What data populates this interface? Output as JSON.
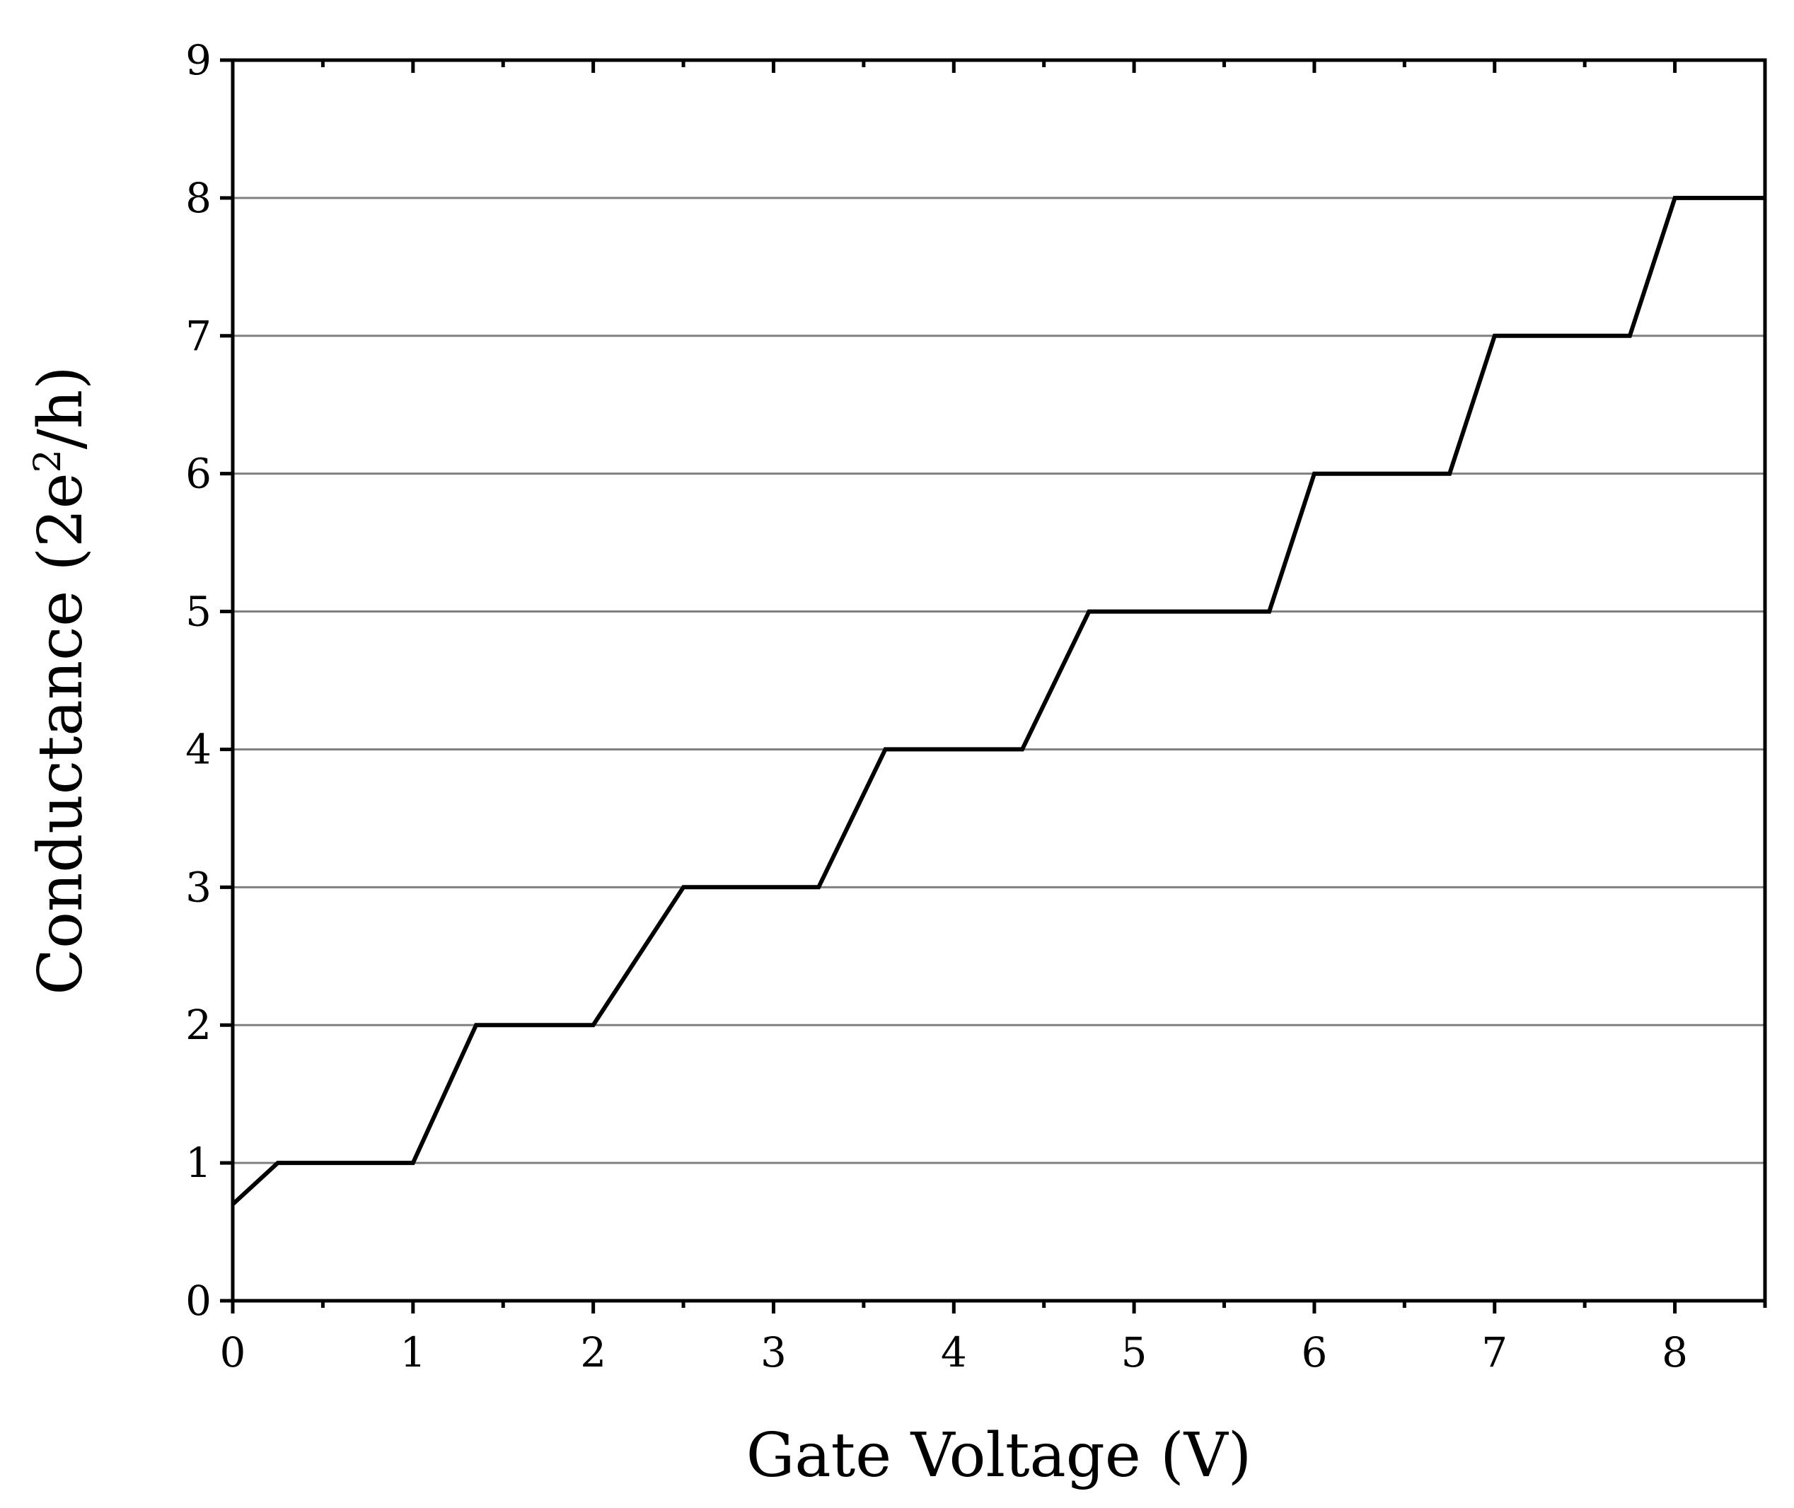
{
  "chart_data": {
    "type": "line",
    "title": "",
    "xlabel": "Gate Voltage (V)",
    "ylabel": {
      "prefix": "Conductance (2e",
      "superscript": "2",
      "suffix": "/h)"
    },
    "xlim": [
      0,
      8.5
    ],
    "ylim": [
      0,
      9
    ],
    "x_ticks": [
      0,
      1,
      2,
      3,
      4,
      5,
      6,
      7,
      8
    ],
    "x_tick_labels": [
      "0",
      "1",
      "2",
      "3",
      "4",
      "5",
      "6",
      "7",
      "8"
    ],
    "x_minor_ticks": [
      0.5,
      1.5,
      2.5,
      3.5,
      4.5,
      5.5,
      6.5,
      7.5,
      8.5
    ],
    "y_ticks": [
      0,
      1,
      2,
      3,
      4,
      5,
      6,
      7,
      8,
      9
    ],
    "y_tick_labels": [
      "0",
      "1",
      "2",
      "3",
      "4",
      "5",
      "6",
      "7",
      "8",
      "9"
    ],
    "horizontal_grid_at": [
      1,
      2,
      3,
      4,
      5,
      6,
      7,
      8
    ],
    "grid": true,
    "legend": "none",
    "series": [
      {
        "color": "#000000",
        "x": [
          0,
          0.25,
          1.0,
          1.35,
          2.0,
          2.5,
          3.25,
          3.62,
          4.38,
          4.75,
          5.75,
          6.0,
          6.75,
          7.0,
          7.75,
          8.0,
          8.5
        ],
        "y": [
          0.7,
          1,
          1,
          2,
          2,
          3,
          3,
          4,
          4,
          5,
          5,
          6,
          6,
          7,
          7,
          8,
          8
        ]
      }
    ],
    "colors": {
      "grid": "#808080",
      "axis": "#000000",
      "line": "#000000"
    }
  }
}
